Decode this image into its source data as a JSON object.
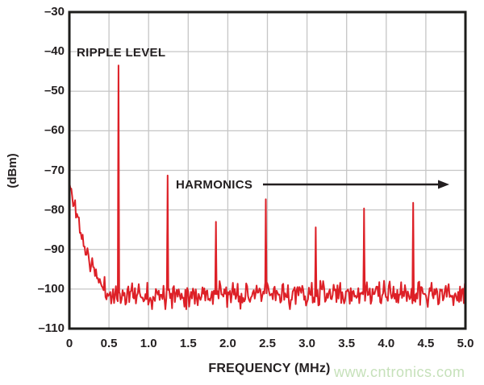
{
  "watermark": {
    "text": "www.cntronics.com",
    "color": "#c6e1ba"
  },
  "chart_data": {
    "type": "line",
    "title": "",
    "xlabel": "FREQUENCY (MHz)",
    "ylabel": "(dBm)",
    "xlim": [
      0,
      5
    ],
    "ylim": [
      -110,
      -30
    ],
    "grid": true,
    "legend": "none",
    "x_ticks": [
      "0",
      "0.5",
      "1.0",
      "1.5",
      "2.0",
      "2.5",
      "3.0",
      "3.5",
      "4.0",
      "4.5",
      "5.0"
    ],
    "x_tick_values": [
      0,
      0.5,
      1.0,
      1.5,
      2.0,
      2.5,
      3.0,
      3.5,
      4.0,
      4.5,
      5.0
    ],
    "y_ticks": [
      "–30",
      "–40",
      "–50",
      "–60",
      "–70",
      "–80",
      "–90",
      "–100",
      "–110"
    ],
    "y_tick_values": [
      -30,
      -40,
      -50,
      -60,
      -70,
      -80,
      -90,
      -100,
      -110
    ],
    "line_color": "#dd2027",
    "grid_color": "#c6c6c6",
    "axis_color": "#1d1d1b",
    "text_color": "#231f20",
    "annotations": [
      {
        "id": "ripple",
        "text": "RIPPLE LEVEL"
      },
      {
        "id": "harmonics",
        "text": "HARMONICS",
        "arrow": "right"
      }
    ],
    "trace": {
      "noise_floor_dbm": -101.3,
      "noise_peak_to_peak_db": 7,
      "descent_profile": [
        [
          0,
          -73.5
        ],
        [
          0.08,
          -80
        ],
        [
          0.2,
          -90
        ],
        [
          0.3,
          -95
        ],
        [
          0.42,
          -99.5
        ],
        [
          0.5,
          -101.3
        ]
      ],
      "peaks": [
        {
          "freq_mhz": 0.62,
          "level_dbm": -43.5,
          "type": "ripple"
        },
        {
          "freq_mhz": 1.24,
          "level_dbm": -71.3,
          "type": "harmonic"
        },
        {
          "freq_mhz": 1.85,
          "level_dbm": -83.0,
          "type": "harmonic"
        },
        {
          "freq_mhz": 2.48,
          "level_dbm": -77.3,
          "type": "harmonic"
        },
        {
          "freq_mhz": 3.11,
          "level_dbm": -84.4,
          "type": "harmonic"
        },
        {
          "freq_mhz": 3.72,
          "level_dbm": -79.6,
          "type": "harmonic"
        },
        {
          "freq_mhz": 4.34,
          "level_dbm": -78.2,
          "type": "harmonic"
        }
      ]
    }
  }
}
